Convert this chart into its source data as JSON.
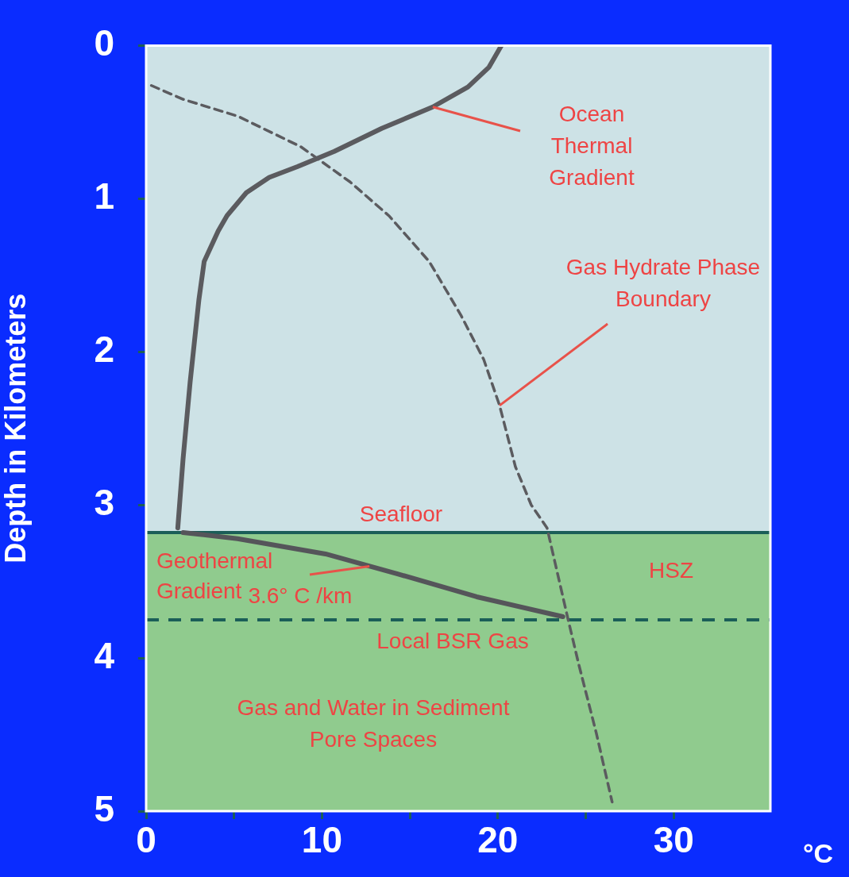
{
  "chart_data": {
    "type": "line",
    "xlabel": "°C",
    "ylabel": "Depth in Kilometers",
    "xlim": [
      0,
      35.5
    ],
    "ylim": [
      5,
      0
    ],
    "xticks": [
      0,
      {
        "value": 5,
        "label": null
      },
      10,
      {
        "value": 15,
        "label": null
      },
      20,
      {
        "value": 25,
        "label": null
      },
      30
    ],
    "yticks": [
      0,
      1,
      2,
      3,
      4,
      5
    ],
    "grid": false,
    "legend": false,
    "series": [
      {
        "color": "#5b5b5f",
        "line_style": "solid",
        "x": [
          20.2,
          19.5,
          18.3,
          16.3,
          13.4,
          10.7,
          8.6,
          7.0,
          5.7,
          4.6,
          4.1,
          3.3,
          3.0,
          2.5,
          2.1,
          1.8
        ],
        "values": [
          0,
          0.14,
          0.27,
          0.4,
          0.54,
          0.69,
          0.79,
          0.86,
          0.96,
          1.11,
          1.21,
          1.41,
          1.66,
          2.2,
          2.7,
          3.15
        ]
      },
      {
        "color": "#5b5b5f",
        "line_style": "dashed",
        "x": [
          0.3,
          2.1,
          5.2,
          8.8,
          11.6,
          13.8,
          16.1,
          17.9,
          19.2,
          20.1,
          21.0,
          21.9,
          22.8,
          23.3,
          24.0,
          24.6,
          25.6,
          26.5
        ],
        "values": [
          0.26,
          0.35,
          0.46,
          0.66,
          0.89,
          1.11,
          1.41,
          1.76,
          2.05,
          2.35,
          2.75,
          3.0,
          3.15,
          3.4,
          3.75,
          4.04,
          4.49,
          4.94
        ]
      },
      {
        "color": "#55555a",
        "line_style": "solid",
        "x": [
          2.1,
          5.2,
          10.2,
          14.3,
          18.8,
          23.7
        ],
        "values": [
          3.18,
          3.22,
          3.32,
          3.45,
          3.6,
          3.73
        ]
      }
    ],
    "bands": [
      {
        "axis": "y",
        "from": 0,
        "to": 3.18,
        "color": "#cde2e6"
      },
      {
        "axis": "y",
        "from": 3.18,
        "to": 5,
        "color": "#90cb8e"
      }
    ],
    "ref_lines": [
      {
        "axis": "y",
        "value": 3.18,
        "label": "Seafloor",
        "color": "#1b5e58",
        "line_style": "solid"
      },
      {
        "axis": "y",
        "value": 3.75,
        "label": "Local BSR Gas",
        "color": "#1b5e58",
        "line_style": "dashed"
      }
    ],
    "annotations": [
      {
        "text": "Ocean Thermal Gradient",
        "x": 16.3,
        "y": 0.4
      },
      {
        "text": "Gas Hydrate Phase Boundary",
        "x": 20.1,
        "y": 2.35
      },
      {
        "text": "Geothermal Gradient 3.6° C /km",
        "x": 12.7,
        "y": 3.4
      },
      "HSZ",
      "Gas and Water in Sediment Pore Spaces"
    ]
  }
}
